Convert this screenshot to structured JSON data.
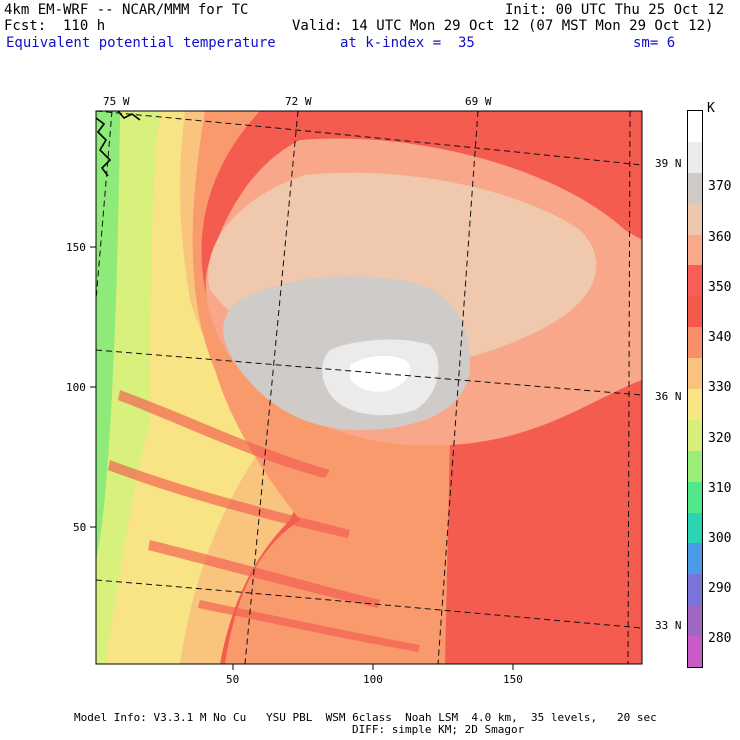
{
  "header": {
    "model": "4km EM-WRF -- NCAR/MMM for TC",
    "init": "Init: 00 UTC Thu 25 Oct 12",
    "fcst": "Fcst:  110 h",
    "valid": "Valid: 14 UTC Mon 29 Oct 12 (07 MST Mon 29 Oct 12)",
    "field": "Equivalent potential temperature",
    "level": "at k-index =  35",
    "smoothing": "sm= 6"
  },
  "top_axis": {
    "labels": [
      "75 W",
      "72 W",
      "69 W"
    ]
  },
  "right_axis": {
    "labels": [
      "39 N",
      "36 N",
      "33 N"
    ]
  },
  "y_axis": {
    "ticks": [
      "150",
      "100",
      "50"
    ]
  },
  "x_axis": {
    "ticks": [
      "50",
      "100",
      "150"
    ]
  },
  "colorbar": {
    "unit": "K",
    "labels": [
      "370",
      "360",
      "350",
      "340",
      "330",
      "320",
      "310",
      "300",
      "290",
      "280"
    ],
    "colors": [
      "#ffffff",
      "#ececec",
      "#cfcac6",
      "#efc7ad",
      "#f9a88c",
      "#f75f56",
      "#f35a4c",
      "#f98f6a",
      "#f9c37f",
      "#f9e486",
      "#d7ee7b",
      "#9bee77",
      "#52e88a",
      "#2bd4b3",
      "#4b9be6",
      "#7a73d8",
      "#9f66c4",
      "#c95bc9"
    ]
  },
  "footer": {
    "line1": "Model Info: V3.3.1 M No Cu   YSU PBL  WSM 6class  Noah LSM  4.0 km,  35 levels,   20 sec",
    "line2": "DIFF: simple KM; 2D Smagor"
  },
  "map_colors": {
    "green": "#8eea79",
    "yellow_green": "#d8f07c",
    "yellow": "#f8e484",
    "light_orange": "#f9c47e",
    "orange": "#f99a6c",
    "red": "#f35c4f",
    "salmon": "#f8a78a",
    "peach": "#efc8ad",
    "gray": "#cfcbc8",
    "light_gray": "#ebebeb",
    "white": "#ffffff"
  }
}
